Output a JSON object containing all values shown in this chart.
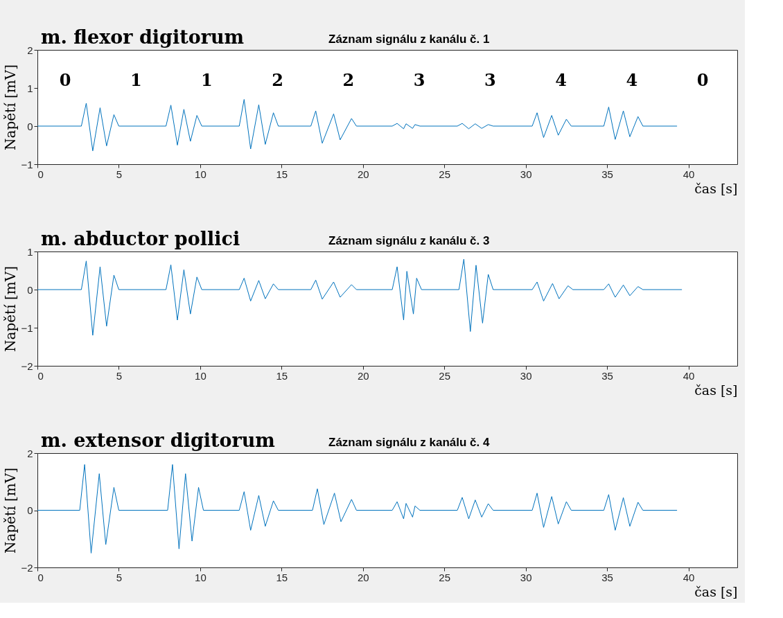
{
  "chart_data": [
    {
      "type": "line",
      "title": "m. flexor digitorum",
      "subtitle": "Záznam signálu z kanálu č. 1",
      "xlabel": "čas [s]",
      "ylabel": "Napětí [mV]",
      "xlim": [
        0,
        43
      ],
      "xticks": [
        0,
        5,
        10,
        15,
        20,
        25,
        30,
        35,
        40
      ],
      "ylim": [
        -1,
        2
      ],
      "yticks": [
        -1,
        0,
        1,
        2
      ],
      "series": [
        {
          "color": "#0072bd",
          "x": [
            0,
            2.7,
            3.0,
            3.4,
            3.85,
            4.25,
            4.7,
            5.0,
            7.9,
            8.2,
            8.6,
            9.0,
            9.4,
            9.8,
            10.1,
            12.4,
            12.7,
            13.1,
            13.6,
            14.0,
            14.5,
            14.8,
            16.8,
            17.1,
            17.5,
            18.2,
            18.6,
            19.3,
            19.6,
            21.8,
            22.1,
            22.5,
            22.65,
            23.05,
            23.2,
            23.5,
            25.8,
            26.1,
            26.5,
            26.9,
            27.3,
            27.7,
            28.0,
            30.4,
            30.7,
            31.1,
            31.6,
            32.0,
            32.5,
            32.8,
            34.8,
            35.1,
            35.5,
            36.0,
            36.4,
            36.9,
            37.2,
            39.3
          ],
          "values": [
            0,
            0,
            0.6,
            -0.65,
            0.48,
            -0.52,
            0.3,
            0,
            0,
            0.55,
            -0.5,
            0.44,
            -0.4,
            0.28,
            0,
            0,
            0.7,
            -0.6,
            0.56,
            -0.48,
            0.35,
            0,
            0,
            0.4,
            -0.45,
            0.32,
            -0.36,
            0.2,
            0,
            0,
            0.07,
            -0.07,
            0.06,
            -0.06,
            0.04,
            0,
            0,
            0.07,
            -0.07,
            0.06,
            -0.06,
            0.04,
            0,
            0,
            0.35,
            -0.3,
            0.28,
            -0.24,
            0.18,
            0,
            0,
            0.5,
            -0.35,
            0.4,
            -0.28,
            0.25,
            0,
            0
          ]
        }
      ],
      "annotations": [
        "0",
        "1",
        "1",
        "2",
        "2",
        "3",
        "3",
        "4",
        "4",
        "0"
      ]
    },
    {
      "type": "line",
      "title": "m. abductor pollici",
      "subtitle": "Záznam signálu z kanálu č. 3",
      "xlabel": "čas [s]",
      "ylabel": "Napětí [mV]",
      "xlim": [
        0,
        43
      ],
      "xticks": [
        0,
        5,
        10,
        15,
        20,
        25,
        30,
        35,
        40
      ],
      "ylim": [
        -2,
        1
      ],
      "yticks": [
        -2,
        -1,
        0,
        1
      ],
      "series": [
        {
          "color": "#0072bd",
          "x": [
            0,
            2.7,
            3.0,
            3.4,
            3.85,
            4.25,
            4.7,
            5.0,
            7.9,
            8.2,
            8.6,
            9.0,
            9.4,
            9.8,
            10.1,
            12.4,
            12.7,
            13.1,
            13.6,
            14.0,
            14.5,
            14.8,
            16.8,
            17.1,
            17.5,
            18.2,
            18.6,
            19.3,
            19.6,
            21.8,
            22.1,
            22.5,
            22.7,
            23.1,
            23.3,
            23.6,
            25.9,
            26.2,
            26.6,
            26.95,
            27.35,
            27.7,
            28.0,
            30.4,
            30.7,
            31.1,
            31.65,
            32.05,
            32.6,
            32.9,
            34.8,
            35.1,
            35.5,
            36.0,
            36.4,
            36.9,
            37.2,
            39.6
          ],
          "values": [
            0,
            0,
            0.75,
            -1.2,
            0.6,
            -0.96,
            0.38,
            0,
            0,
            0.65,
            -0.8,
            0.52,
            -0.64,
            0.33,
            0,
            0,
            0.3,
            -0.3,
            0.24,
            -0.24,
            0.15,
            0,
            0,
            0.25,
            -0.25,
            0.2,
            -0.2,
            0.13,
            0,
            0,
            0.6,
            -0.8,
            0.48,
            -0.64,
            0.3,
            0,
            0,
            0.8,
            -1.1,
            0.64,
            -0.88,
            0.4,
            0,
            0,
            0.2,
            -0.3,
            0.16,
            -0.24,
            0.1,
            0,
            0,
            0.15,
            -0.2,
            0.12,
            -0.16,
            0.08,
            0,
            0
          ]
        }
      ]
    },
    {
      "type": "line",
      "title": "m. extensor digitorum",
      "subtitle": "Záznam signálu z kanálu č. 4",
      "xlabel": "čas [s]",
      "ylabel": "Napětí [mV]",
      "xlim": [
        0,
        43
      ],
      "xticks": [
        0,
        5,
        10,
        15,
        20,
        25,
        30,
        35,
        40
      ],
      "ylim": [
        -2,
        2
      ],
      "yticks": [
        -2,
        0,
        2
      ],
      "series": [
        {
          "color": "#0072bd",
          "x": [
            0,
            2.6,
            2.9,
            3.3,
            3.8,
            4.2,
            4.7,
            5.0,
            8.0,
            8.3,
            8.7,
            9.1,
            9.5,
            9.9,
            10.2,
            12.4,
            12.7,
            13.1,
            13.6,
            14.0,
            14.5,
            14.8,
            16.9,
            17.2,
            17.6,
            18.25,
            18.65,
            19.3,
            19.6,
            21.8,
            22.1,
            22.5,
            22.65,
            23.05,
            23.2,
            23.5,
            25.8,
            26.1,
            26.5,
            26.9,
            27.3,
            27.7,
            28.0,
            30.4,
            30.7,
            31.1,
            31.6,
            32.0,
            32.5,
            32.8,
            34.8,
            35.1,
            35.5,
            36.0,
            36.4,
            36.9,
            37.2,
            39.3
          ],
          "values": [
            0,
            0,
            1.6,
            -1.5,
            1.28,
            -1.2,
            0.8,
            0,
            0,
            1.6,
            -1.35,
            1.28,
            -1.08,
            0.8,
            0,
            0,
            0.65,
            -0.7,
            0.52,
            -0.56,
            0.33,
            0,
            0,
            0.75,
            -0.5,
            0.6,
            -0.4,
            0.38,
            0,
            0,
            0.3,
            -0.3,
            0.24,
            -0.24,
            0.15,
            0,
            0,
            0.45,
            -0.3,
            0.36,
            -0.24,
            0.23,
            0,
            0,
            0.6,
            -0.6,
            0.48,
            -0.48,
            0.3,
            0,
            0,
            0.55,
            -0.7,
            0.44,
            -0.56,
            0.28,
            0,
            0
          ]
        }
      ]
    }
  ]
}
